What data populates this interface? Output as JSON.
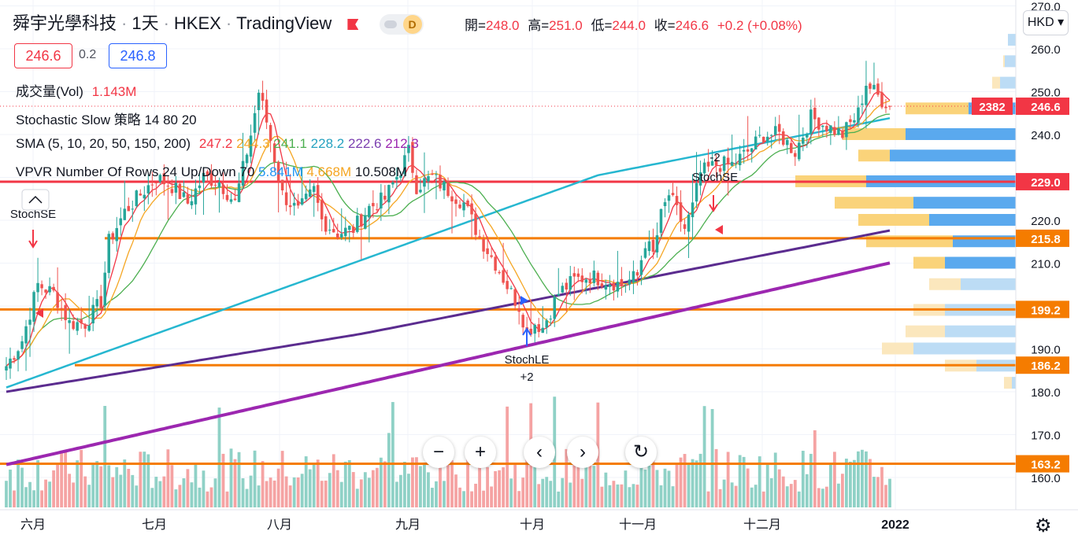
{
  "header": {
    "symbol": "舜宇光學科技",
    "interval": "1天",
    "exchange": "HKEX",
    "source": "TradingView",
    "badge": "D",
    "ohlc": [
      {
        "label": "開",
        "value": "248.0"
      },
      {
        "label": "高",
        "value": "251.0"
      },
      {
        "label": "低",
        "value": "244.0"
      },
      {
        "label": "收",
        "value": "246.6"
      }
    ],
    "change": "+0.2 (+0.08%)",
    "bid": "246.6",
    "spread": "0.2",
    "ask": "246.8",
    "currency": "HKD"
  },
  "indicators": {
    "volume": {
      "label": "成交量(Vol)",
      "value": "1.143M"
    },
    "stochastic": {
      "label": "Stochastic Slow 策略 14 80 20"
    },
    "sma": {
      "label": "SMA (5, 10, 20, 50, 150, 200)",
      "values": [
        {
          "text": "247.2",
          "color": "#f23645"
        },
        {
          "text": "244.3",
          "color": "#f5a623"
        },
        {
          "text": "241.1",
          "color": "#4caf50"
        },
        {
          "text": "228.2",
          "color": "#26a2c0"
        },
        {
          "text": "222.6",
          "color": "#5b2c8f"
        },
        {
          "text": "212.3",
          "color": "#9c27b0"
        }
      ]
    },
    "vpvr": {
      "label": "VPVR Number Of Rows 24 Up/Down 70",
      "values": [
        {
          "text": "5.841M",
          "color": "#2196f3"
        },
        {
          "text": "4.668M",
          "color": "#f5a623"
        },
        {
          "text": "10.508M",
          "color": "#131722"
        }
      ]
    }
  },
  "chart_data": {
    "type": "candlestick",
    "ylim": [
      155,
      270
    ],
    "y_ticks": [
      "270.0",
      "260.0",
      "250.0",
      "240.0",
      "230.0",
      "220.0",
      "210.0",
      "200.0",
      "190.0",
      "180.0",
      "170.0",
      "160.0"
    ],
    "x_ticks": [
      "六月",
      "七月",
      "八月",
      "九月",
      "十月",
      "十一月",
      "十二月",
      "2022"
    ],
    "last_price": "246.6",
    "last_price_count": "2382",
    "horizontal_lines": [
      {
        "price": 229.0,
        "label": "229.0",
        "color": "#f23645"
      },
      {
        "price": 215.8,
        "label": "215.8",
        "color": "#f57c00"
      },
      {
        "price": 199.2,
        "label": "199.2",
        "color": "#f57c00"
      },
      {
        "price": 186.2,
        "label": "186.2",
        "color": "#f57c00"
      },
      {
        "price": 163.2,
        "label": "163.2",
        "color": "#f57c00"
      }
    ],
    "signals": [
      {
        "label": "StochSE",
        "sub": "",
        "type": "short"
      },
      {
        "label": "StochLE",
        "sub": "+2",
        "type": "long"
      },
      {
        "label": "StochSE",
        "sub": "-2",
        "type": "short"
      }
    ],
    "colors": {
      "up": "#26a69a",
      "down": "#ef5350",
      "up_vol": "#8fd1c6",
      "down_vol": "#f5a3a3"
    }
  },
  "nav": {
    "zoom_out": "−",
    "zoom_in": "+",
    "prev": "‹",
    "next": "›",
    "reset": "↻",
    "settings": "⚙"
  }
}
